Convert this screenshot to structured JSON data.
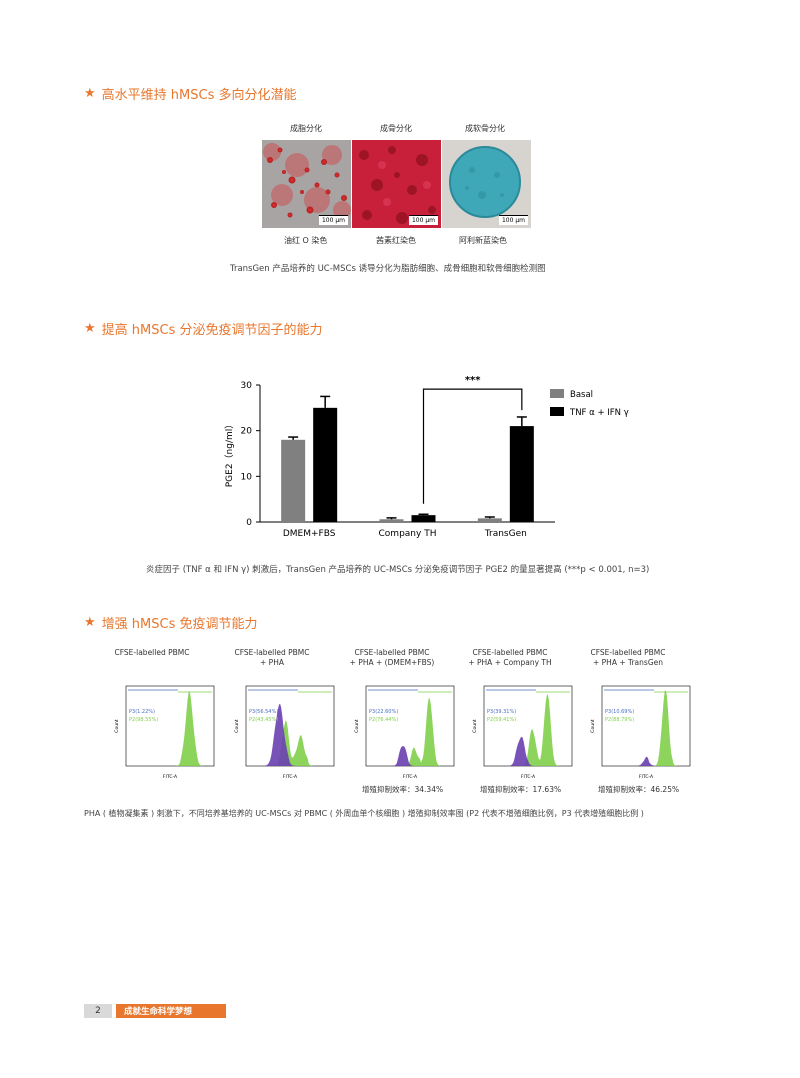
{
  "sections": {
    "s1_title": "高水平维持 hMSCs 多向分化潜能",
    "s2_title": "提高 hMSCs 分泌免疫调节因子的能力",
    "s3_title": "增强 hMSCs 免疫调节能力",
    "star": "★"
  },
  "differentiation": {
    "labels": [
      "成脂分化",
      "成骨分化",
      "成软骨分化"
    ],
    "stains": [
      "油红 O 染色",
      "茜素红染色",
      "阿利新蓝染色"
    ],
    "scale": [
      "100 μm",
      "100 μm",
      "100 μm"
    ],
    "caption": "TransGen 产品培养的 UC-MSCs 诱导分化为脂肪细胞、成骨细胞和软骨细胞检测图"
  },
  "chart_data": {
    "type": "bar",
    "categories": [
      "DMEM+FBS",
      "Company TH",
      "TransGen"
    ],
    "series": [
      {
        "name": "Basal",
        "values": [
          18,
          0.6,
          0.8
        ],
        "errors": [
          0.6,
          0.3,
          0.3
        ],
        "color": "#808080"
      },
      {
        "name": "TNF α + IFN γ",
        "values": [
          25,
          1.5,
          21
        ],
        "errors": [
          2.5,
          0.2,
          2.0
        ],
        "color": "#000000"
      }
    ],
    "ylabel": "PGE2（ng/ml）",
    "yticks": [
      0,
      10,
      20,
      30
    ],
    "ylim": [
      0,
      30
    ],
    "significance": "***",
    "caption": "炎症因子 (TNF α 和 IFN γ) 刺激后，TransGen 产品培养的 UC-MSCs 分泌免疫调节因子 PGE2 的量显著提高 (***p < 0.001, n=3)"
  },
  "flow": {
    "panels": [
      {
        "title": "CFSE-labelled PBMC",
        "p3": "P3(1.22%)",
        "p2": "P2(98.55%)",
        "efficiency": ""
      },
      {
        "title": "CFSE-labelled PBMC\n+ PHA",
        "p3": "P3(56.54%)",
        "p2": "P2(43.45%)",
        "efficiency": ""
      },
      {
        "title": "CFSE-labelled PBMC\n+ PHA + (DMEM+FBS)",
        "p3": "P3(22.60%)",
        "p2": "P2(76.44%)",
        "efficiency": "增殖抑制效率：34.34%"
      },
      {
        "title": "CFSE-labelled PBMC\n+ PHA + Company TH",
        "p3": "P3(39.31%)",
        "p2": "P2(59.41%)",
        "efficiency": "增殖抑制效率：17.63%"
      },
      {
        "title": "CFSE-labelled PBMC\n+ PHA + TransGen",
        "p3": "P3(10.69%)",
        "p2": "P2(88.79%)",
        "efficiency": "增殖抑制效率：46.25%"
      }
    ],
    "xlabel": "FITC-A",
    "ylabel": "Count",
    "caption": "PHA ( 植物凝集素 ) 刺激下，不同培养基培养的 UC-MSCs 对 PBMC ( 外周血单个核细胞 ) 增殖抑制效率图 (P2 代表不增殖细胞比例，P3 代表增殖细胞比例 )"
  },
  "footer": {
    "page": "2",
    "slogan": "成就生命科学梦想"
  }
}
